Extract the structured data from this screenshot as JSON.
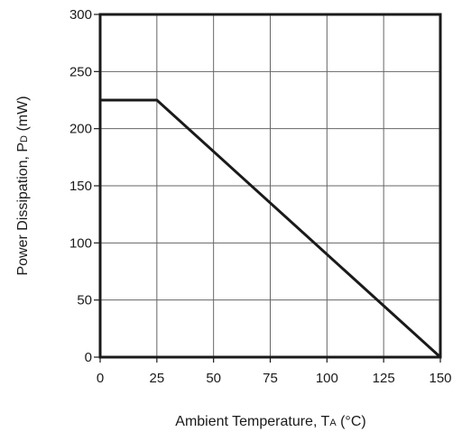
{
  "chart_data": {
    "type": "line",
    "title": "",
    "xlabel": {
      "prefix": "Ambient Temperature, T",
      "subscript": "A",
      "suffix": " (°C)"
    },
    "ylabel": {
      "prefix": "Power Dissipation, P",
      "subscript": "D",
      "suffix": " (mW)"
    },
    "xlim": [
      0,
      150
    ],
    "ylim": [
      0,
      300
    ],
    "xticks": [
      0,
      25,
      50,
      75,
      100,
      125,
      150
    ],
    "yticks": [
      0,
      50,
      100,
      150,
      200,
      250,
      300
    ],
    "grid": true,
    "series": [
      {
        "x": [
          0,
          25,
          150
        ],
        "y": [
          225,
          225,
          0
        ],
        "color": "#1a1a1a"
      }
    ]
  }
}
